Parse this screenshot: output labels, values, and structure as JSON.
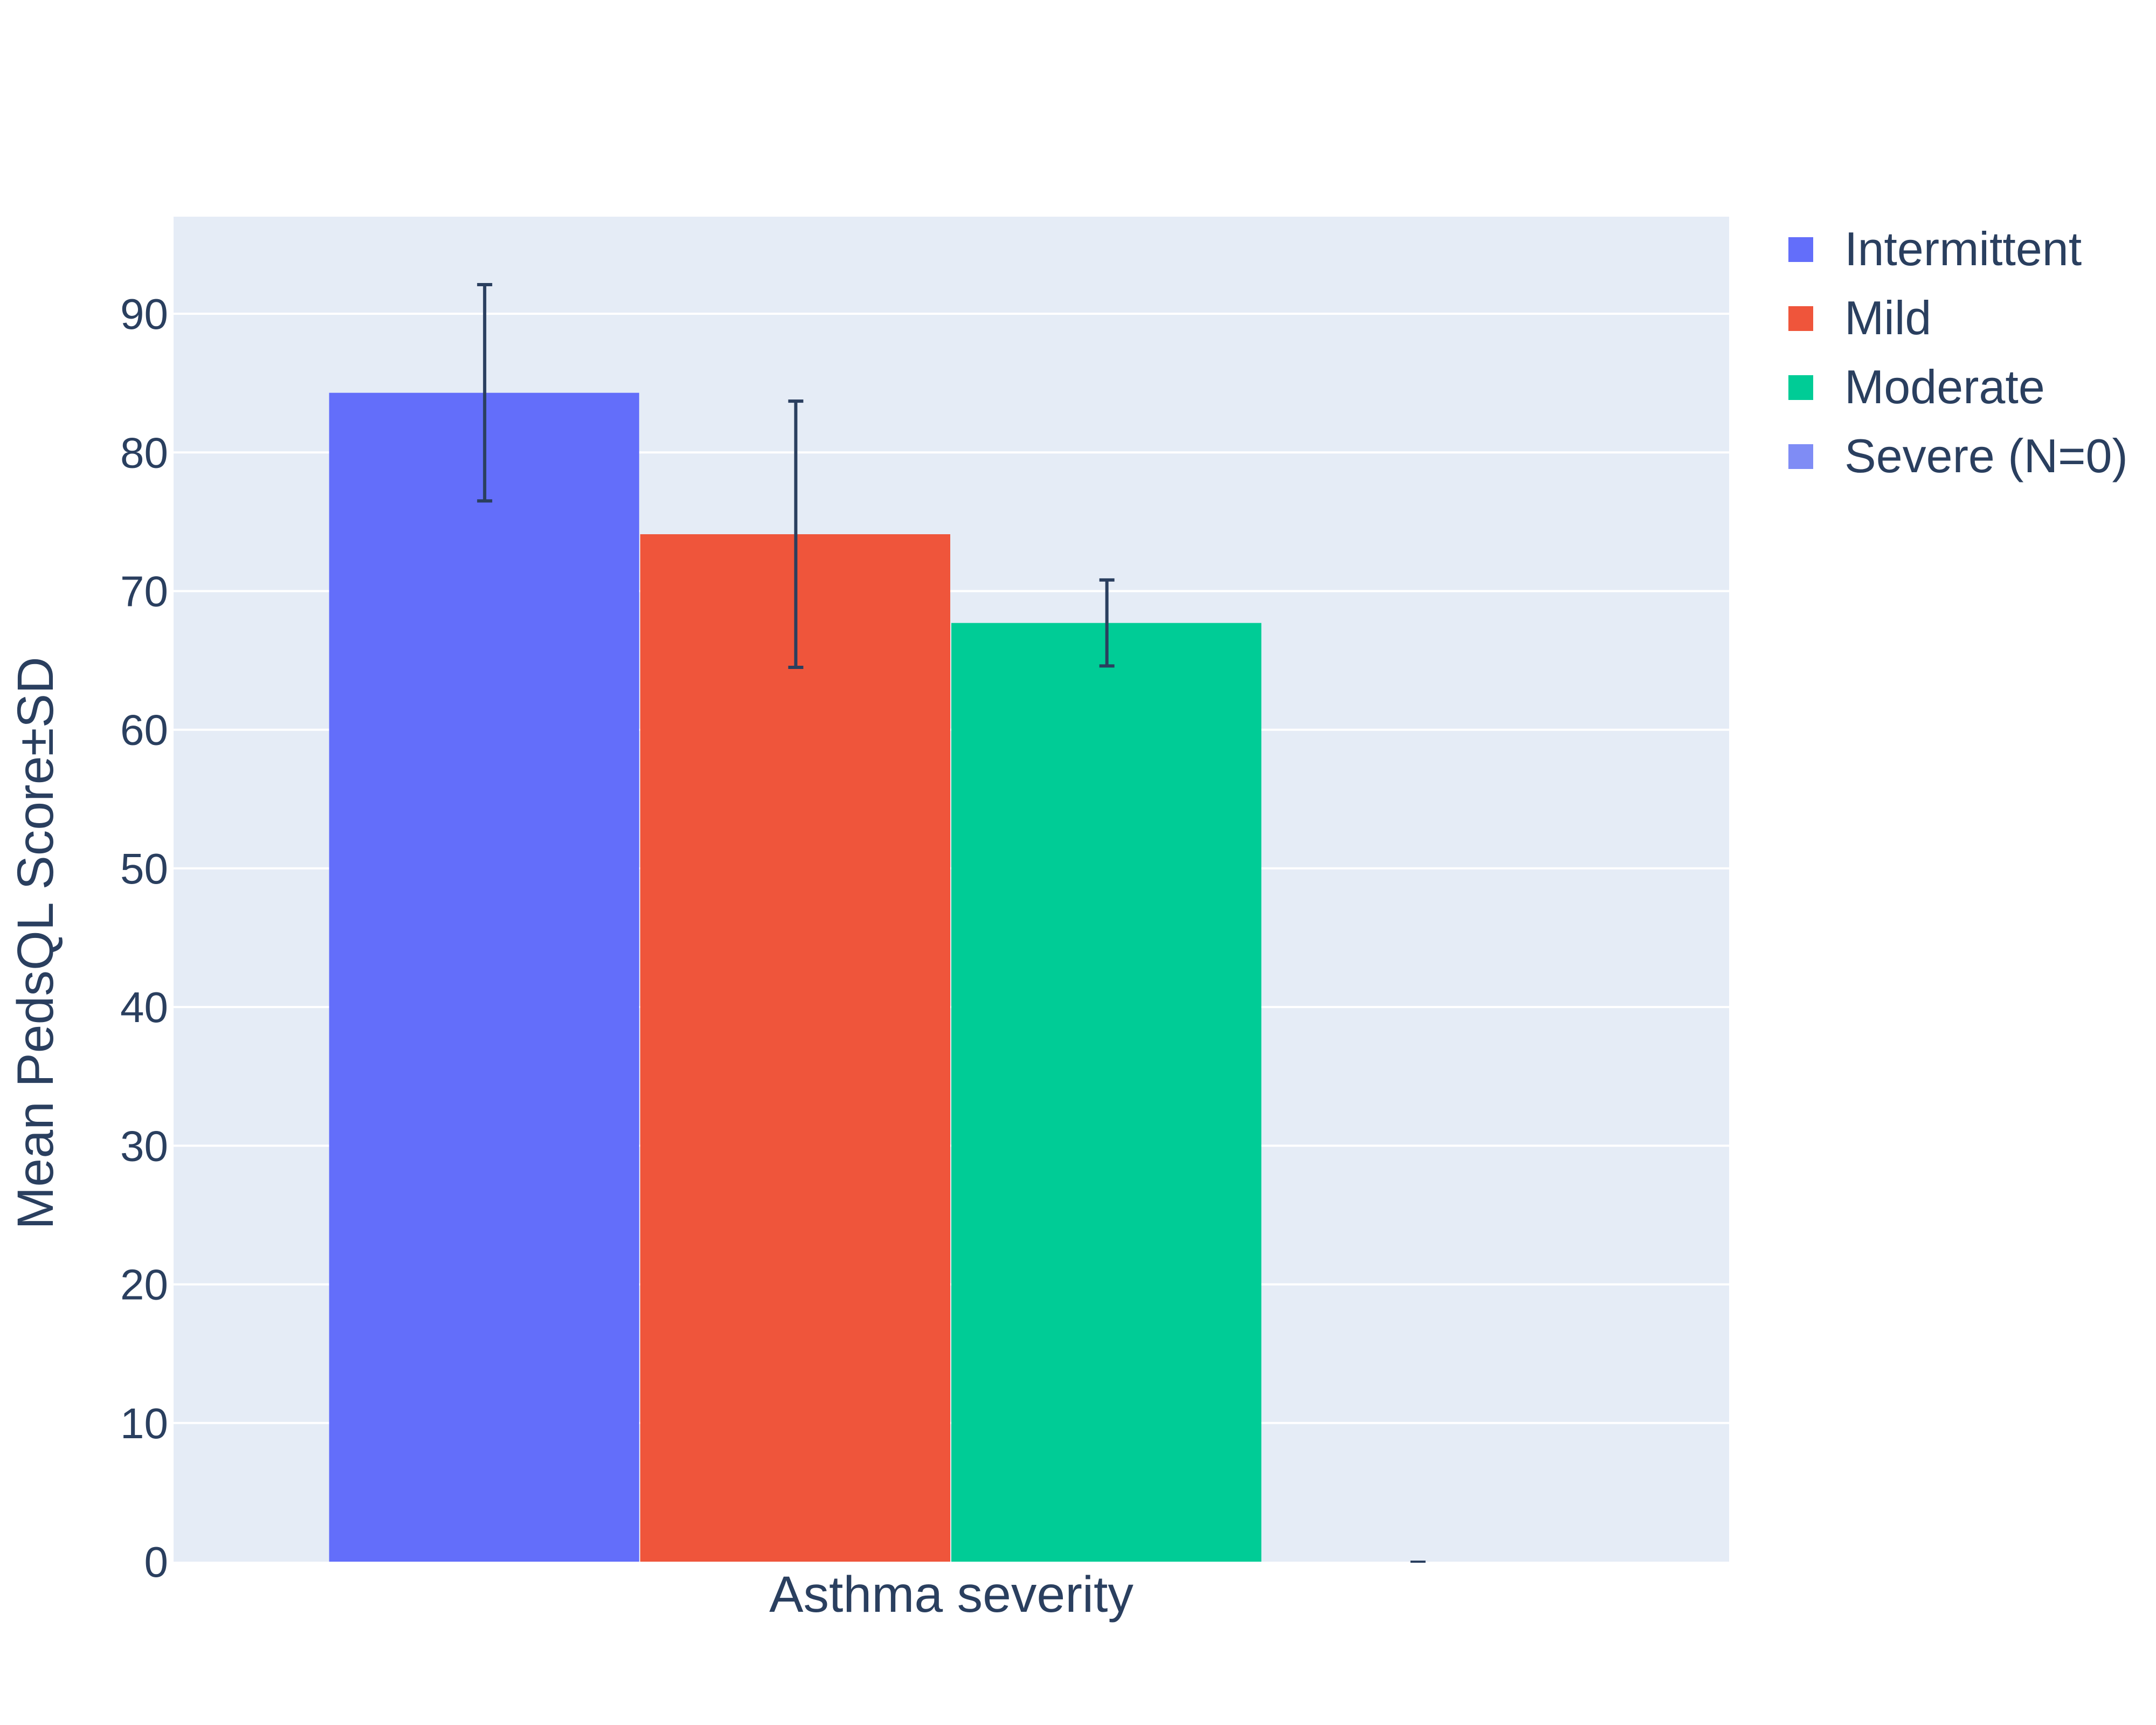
{
  "chart_data": {
    "type": "bar",
    "categories": [
      "Asthma severity"
    ],
    "xlabel": "Asthma severity",
    "ylabel": "Mean PedsQL Score±SD",
    "ylim": [
      0,
      97
    ],
    "yticks": [
      0,
      10,
      20,
      30,
      40,
      50,
      60,
      70,
      80,
      90
    ],
    "grid": true,
    "legend_position": "top-right",
    "series": [
      {
        "name": "Intermittent",
        "values": [
          84.3
        ],
        "error": [
          7.8
        ],
        "color": "#636efa"
      },
      {
        "name": "Mild",
        "values": [
          74.1
        ],
        "error": [
          9.6
        ],
        "color": "#ef553b"
      },
      {
        "name": "Moderate",
        "values": [
          67.7
        ],
        "error": [
          3.1
        ],
        "color": "#00cc96"
      },
      {
        "name": "Severe (N=0)",
        "values": [
          0
        ],
        "error": [
          0
        ],
        "color": "#7f8cf5"
      }
    ],
    "colors": {
      "plot_background": "#e5ecf6",
      "gridline": "#ffffff",
      "text": "#2a3f5f",
      "error_bar": "#2a3f5f"
    }
  }
}
